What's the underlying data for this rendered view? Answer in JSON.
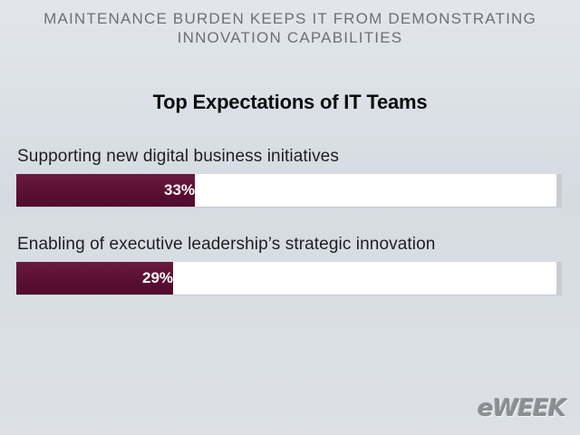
{
  "header": {
    "line1": "MAINTENANCE BURDEN KEEPS IT FROM DEMONSTRATING",
    "line2": "INNOVATION CAPABILITIES"
  },
  "logo": {
    "text": "eWEEK"
  },
  "colors": {
    "bar": "#5a0f33",
    "track": "#ffffff",
    "background": "#dde1e7"
  },
  "chart_data": {
    "type": "bar",
    "orientation": "horizontal",
    "title": "Top Expectations of IT Teams",
    "categories": [
      "Supporting new digital business initiatives",
      "Enabling of executive leadership’s strategic innovation"
    ],
    "values": [
      33,
      29
    ],
    "value_labels": [
      "33%",
      "29%"
    ],
    "xlim": [
      0,
      100
    ],
    "grid": false
  }
}
